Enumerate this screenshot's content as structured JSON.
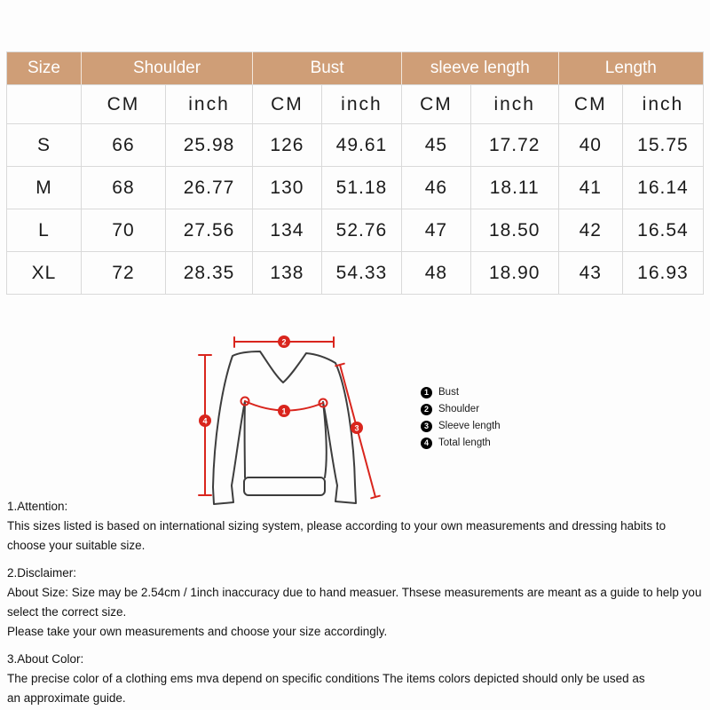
{
  "colors": {
    "header_bg": "#cf9e77",
    "header_text": "#ffffff",
    "border": "#d9d9d9",
    "red_line": "#d9251d",
    "sweater_outline": "#3d3d3d",
    "text": "#141414"
  },
  "table": {
    "size_header": "Size",
    "groups": [
      {
        "label": "Shoulder"
      },
      {
        "label": "Bust"
      },
      {
        "label": "sleeve length"
      },
      {
        "label": "Length"
      }
    ],
    "unit_cm": "CM",
    "unit_inch": "inch",
    "rows": [
      {
        "size": "S",
        "values": [
          "66",
          "25.98",
          "126",
          "49.61",
          "45",
          "17.72",
          "40",
          "15.75"
        ]
      },
      {
        "size": "M",
        "values": [
          "68",
          "26.77",
          "130",
          "51.18",
          "46",
          "18.11",
          "41",
          "16.14"
        ]
      },
      {
        "size": "L",
        "values": [
          "70",
          "27.56",
          "134",
          "52.76",
          "47",
          "18.50",
          "42",
          "16.54"
        ]
      },
      {
        "size": "XL",
        "values": [
          "72",
          "28.35",
          "138",
          "54.33",
          "48",
          "18.90",
          "43",
          "16.93"
        ]
      }
    ]
  },
  "diagram": {
    "markers": [
      {
        "num": "1",
        "label": "Bust"
      },
      {
        "num": "2",
        "label": "Shoulder"
      },
      {
        "num": "3",
        "label": "Sleeve length"
      },
      {
        "num": "4",
        "label": "Total length"
      }
    ]
  },
  "notes": {
    "sections": [
      {
        "title": "1.Attention:",
        "lines": [
          "This sizes listed is based on international sizing system, please according to your own measurements and dressing habits to choose your suitable size."
        ]
      },
      {
        "title": "2.Disclaimer:",
        "lines": [
          "About Size: Size may be 2.54cm / 1inch inaccuracy due to hand measuer. Thsese measurements are meant as a guide to help you select the correct size.",
          "Please take your own measurements and choose your size accordingly."
        ]
      },
      {
        "title": "3.About Color:",
        "lines": [
          "The precise color of a clothing ems mva depend on specific conditions The items colors depicted should only be used as",
          "an approximate guide."
        ]
      }
    ]
  }
}
